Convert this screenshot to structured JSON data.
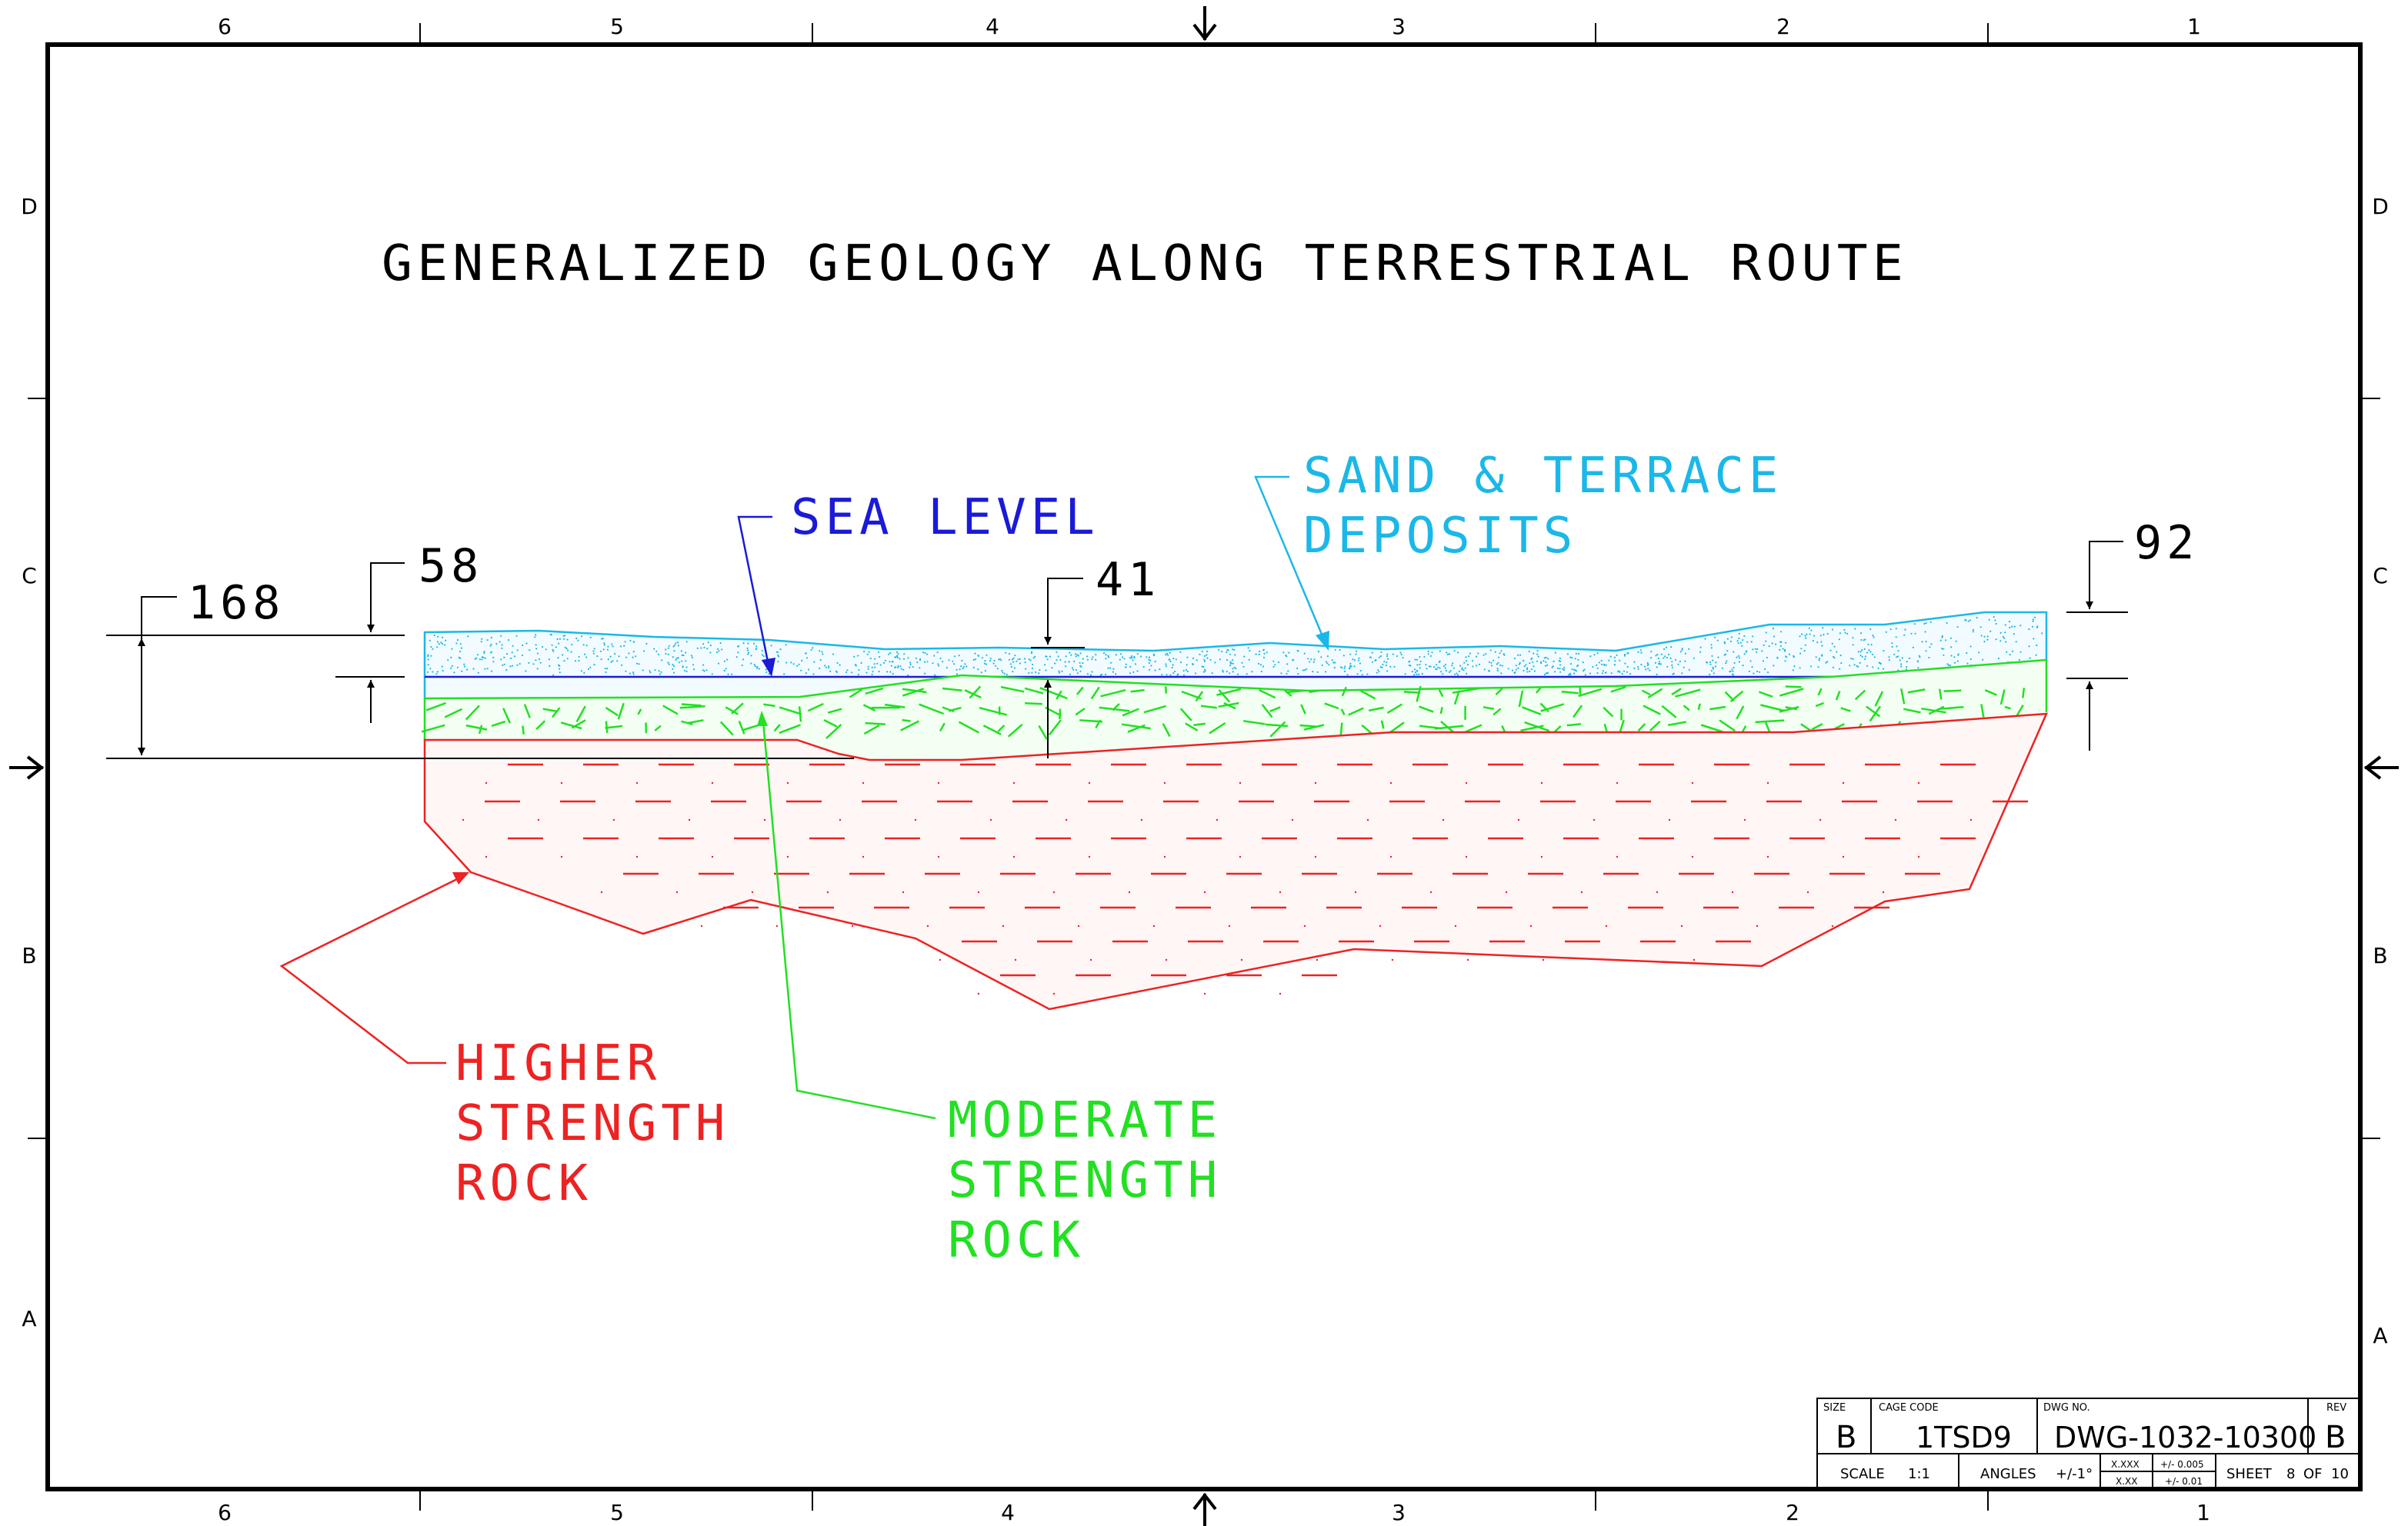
{
  "title": "GENERALIZED GEOLOGY ALONG TERRESTRIAL ROUTE",
  "zone_columns_top": [
    "6",
    "5",
    "4",
    "3",
    "2",
    "1"
  ],
  "zone_columns_bottom": [
    "6",
    "5",
    "4",
    "3",
    "2",
    "1"
  ],
  "zone_rows_left": [
    "D",
    "C",
    "B",
    "A"
  ],
  "zone_rows_right": [
    "D",
    "C",
    "B",
    "A"
  ],
  "dimensions": {
    "d168": "168",
    "d58": "58",
    "d41": "41",
    "d92": "92"
  },
  "labels": {
    "sea_level": "SEA LEVEL",
    "sand_line1": "SAND & TERRACE",
    "sand_line2": "DEPOSITS",
    "higher_line1": "HIGHER",
    "higher_line2": "STRENGTH",
    "higher_line3": "ROCK",
    "moderate_line1": "MODERATE",
    "moderate_line2": "STRENGTH",
    "moderate_line3": "ROCK"
  },
  "colors": {
    "sand": "#1ab8e8",
    "sea_level": "#1a1ad8",
    "moderate_rock": "#22e022",
    "higher_rock": "#ee2222",
    "border": "#000000"
  },
  "title_block": {
    "size_label": "SIZE",
    "size_value": "B",
    "cage_label": "CAGE CODE",
    "cage_value": "1TSD9",
    "dwg_label": "DWG NO.",
    "dwg_value": "DWG-1032-10300",
    "rev_label": "REV",
    "rev_value": "B",
    "scale_label": "SCALE",
    "scale_value": "1:1",
    "angles_label": "ANGLES",
    "angles_value": "+/-1°",
    "tol_xxx": "X.XXX",
    "tol_xxx_value": "+/- 0.005",
    "tol_xx": "X.XX",
    "tol_xx_value": "+/- 0.01",
    "sheet_label": "SHEET",
    "sheet_value": "8",
    "of_label": "OF",
    "of_value": "10"
  }
}
